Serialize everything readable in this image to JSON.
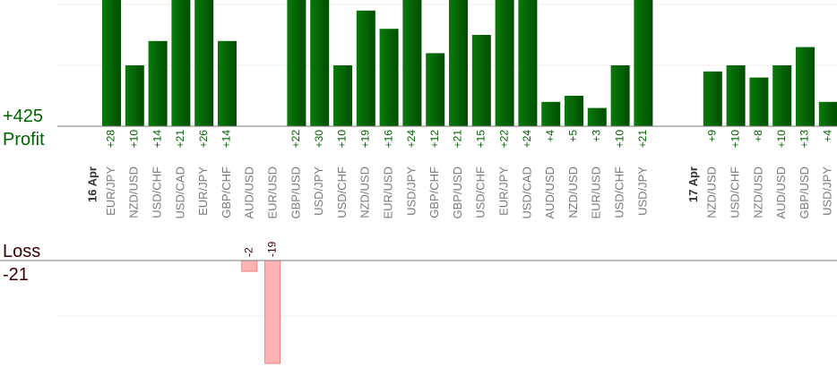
{
  "summary": {
    "profit_total": "+425",
    "profit_label": "Profit",
    "loss_label": "Loss",
    "loss_total": "-21"
  },
  "colors": {
    "profit_text": "#006400",
    "profit_bar_light": "#0a7a0a",
    "profit_bar_dark": "#004d00",
    "loss_text": "#3a0000",
    "loss_bar": "#ffb3b3",
    "loss_bar_border": "#f08080",
    "pair_text": "#7a7a7a",
    "date_text": "#333333",
    "grid": "#eeeeee",
    "axis": "#777777"
  },
  "chart_data": {
    "type": "bar",
    "profit_axis_max": 40,
    "loss_axis_max": 20,
    "profit_gridlines": [
      10,
      20
    ],
    "loss_gridlines": [
      10
    ],
    "groups": [
      {
        "date": "16 Apr",
        "trades": [
          {
            "pair": "EUR/JPY",
            "value": 28
          },
          {
            "pair": "NZD/USD",
            "value": 10
          },
          {
            "pair": "USD/CHF",
            "value": 14
          },
          {
            "pair": "USD/CAD",
            "value": 21
          },
          {
            "pair": "EUR/JPY",
            "value": 26
          },
          {
            "pair": "GBP/CHF",
            "value": 14
          },
          {
            "pair": "AUD/USD",
            "value": -2
          },
          {
            "pair": "EUR/USD",
            "value": -19
          },
          {
            "pair": "GBP/USD",
            "value": 22
          },
          {
            "pair": "USD/JPY",
            "value": 30
          },
          {
            "pair": "USD/CHF",
            "value": 10
          },
          {
            "pair": "NZD/USD",
            "value": 19
          },
          {
            "pair": "EUR/USD",
            "value": 16
          },
          {
            "pair": "USD/JPY",
            "value": 24
          },
          {
            "pair": "GBP/CHF",
            "value": 12
          },
          {
            "pair": "GBP/USD",
            "value": 21
          },
          {
            "pair": "USD/CHF",
            "value": 15
          },
          {
            "pair": "EUR/JPY",
            "value": 22
          },
          {
            "pair": "USD/CAD",
            "value": 24
          },
          {
            "pair": "AUD/USD",
            "value": 4
          },
          {
            "pair": "NZD/USD",
            "value": 5
          },
          {
            "pair": "EUR/USD",
            "value": 3
          },
          {
            "pair": "USD/CHF",
            "value": 10
          },
          {
            "pair": "USD/JPY",
            "value": 21
          }
        ]
      },
      {
        "date": "17 Apr",
        "trades": [
          {
            "pair": "NZD/USD",
            "value": 9
          },
          {
            "pair": "USD/CHF",
            "value": 10
          },
          {
            "pair": "NZD/USD",
            "value": 8
          },
          {
            "pair": "AUD/USD",
            "value": 10
          },
          {
            "pair": "GBP/USD",
            "value": 13
          },
          {
            "pair": "USD/JPY",
            "value": 4
          }
        ]
      }
    ]
  }
}
